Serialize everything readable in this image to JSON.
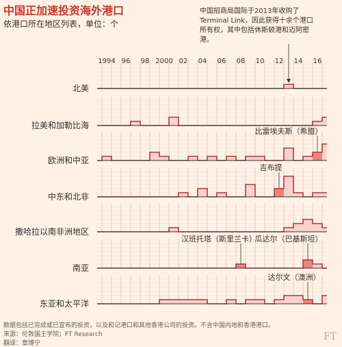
{
  "title": "中国正加速投资海外港口",
  "subtitle": "依港口所在地区列表，单位：个",
  "top_annotation": "中国招商局国际于2013年收购了Terminal Link，因此获得十余个港口所有权，其中包括休斯顿港和迈阿密港。",
  "footer": {
    "line1": "数据包括已完成或已宣布的投资，以及和记港口和其他香港公司的投资。不含中国内地和香港港口。",
    "line2": "来源：伦敦国王学院；FT Research",
    "line3": "翻译：章博宁"
  },
  "logo": "FT",
  "colors": {
    "background": "#fff1e5",
    "line": "#b5343a",
    "fill": "#f7d3cd",
    "highlight": "#e9847e",
    "grid": "#e2cfc0",
    "baseline": "#33302e"
  },
  "chart_data": {
    "type": "area",
    "x": [
      1993,
      1994,
      1995,
      1996,
      1997,
      1998,
      1999,
      2000,
      2001,
      2002,
      2003,
      2004,
      2005,
      2006,
      2007,
      2008,
      2009,
      2010,
      2011,
      2012,
      2013,
      2014,
      2015,
      2016,
      2017
    ],
    "x_tick_labels": [
      "1994",
      "96",
      "98",
      "2000",
      "02",
      "04",
      "06",
      "08",
      "10",
      "12",
      "14",
      "16"
    ],
    "x_ticks": [
      1994,
      1996,
      1998,
      2000,
      2002,
      2004,
      2006,
      2008,
      2010,
      2012,
      2014,
      2016
    ],
    "ylim": [
      0,
      4
    ],
    "grid": true,
    "series": [
      {
        "name": "北美",
        "values": [
          0,
          0,
          0,
          0,
          0,
          0,
          0,
          0,
          0,
          0,
          0,
          0,
          0,
          0,
          0,
          0,
          0,
          0,
          0,
          0,
          1,
          0,
          0,
          0,
          0
        ]
      },
      {
        "name": "拉美和加勒比海",
        "values": [
          0,
          0,
          0,
          0,
          1,
          0,
          0,
          0,
          2,
          0,
          0,
          0,
          0,
          0,
          0,
          0,
          0,
          0,
          0,
          0,
          0,
          0,
          0,
          1,
          2
        ]
      },
      {
        "name": "欧洲和中亚",
        "values": [
          0,
          1,
          0,
          0,
          0,
          0,
          2,
          1,
          0,
          0,
          1,
          0,
          1,
          0,
          1,
          0,
          1,
          1,
          0,
          0,
          3,
          0,
          1,
          2,
          4
        ]
      },
      {
        "name": "中东和北非",
        "values": [
          0,
          0,
          0,
          0,
          0,
          0,
          0,
          0,
          0,
          1,
          0,
          2,
          0,
          1,
          0,
          0,
          3,
          0,
          0,
          2,
          5,
          1,
          0,
          1,
          1
        ]
      },
      {
        "name": "撒哈拉以南非洲地区",
        "values": [
          0,
          0,
          0,
          0,
          0,
          0,
          0,
          0,
          1,
          0,
          0,
          0,
          0,
          0,
          0,
          0,
          0,
          0,
          0,
          0,
          1,
          2,
          3,
          2,
          1
        ]
      },
      {
        "name": "南亚",
        "values": [
          0,
          0,
          0,
          0,
          0,
          0,
          0,
          0,
          0,
          0,
          0,
          0,
          0,
          0,
          0,
          1,
          0,
          0,
          0,
          0,
          0,
          0,
          2,
          1,
          0
        ]
      },
      {
        "name": "东亚和太平洋",
        "values": [
          0,
          0,
          0,
          0,
          0,
          0,
          0,
          1,
          1,
          1,
          1,
          1,
          0,
          0,
          1,
          0,
          1,
          1,
          0,
          1,
          2,
          2,
          1,
          0,
          2
        ]
      }
    ],
    "highlights": [
      {
        "series": "欧洲和中亚",
        "year": 2016,
        "label": "比雷埃夫斯（希腊）"
      },
      {
        "series": "中东和北非",
        "year": 2012,
        "label": "吉布提"
      },
      {
        "series": "南亚",
        "year": 2008,
        "label": "汉班托塔（斯里兰卡）"
      },
      {
        "series": "南亚",
        "year": 2015,
        "label": "瓜达尔（巴基斯坦）"
      },
      {
        "series": "东亚和太平洋",
        "year": 2015,
        "label": "达尔文（澳洲）"
      }
    ]
  }
}
